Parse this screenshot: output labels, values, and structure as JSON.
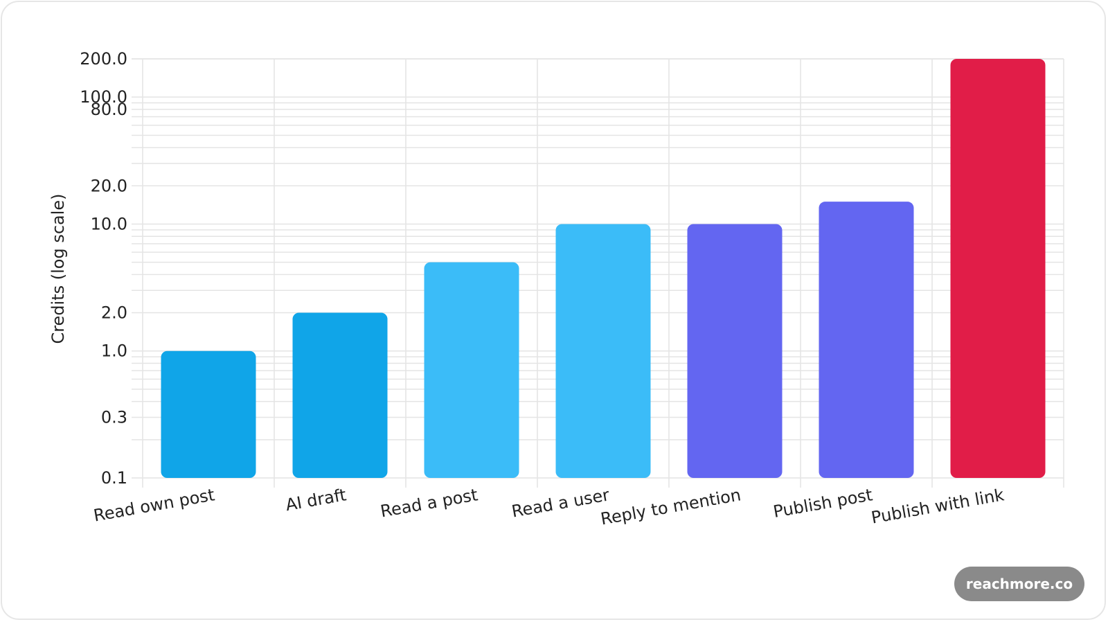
{
  "chart_data": {
    "type": "bar",
    "ylabel": "Credits (log scale)",
    "xlabel": "",
    "yscale": "log",
    "ylim": [
      0.1,
      200
    ],
    "grid": true,
    "ytick_labels": [
      "0.1",
      "0.3",
      "1.0",
      "2.0",
      "10.0",
      "20.0",
      "80.0",
      "100.0",
      "200.0"
    ],
    "categories": [
      "Read own post",
      "AI draft",
      "Read a post",
      "Read a user",
      "Reply to mention",
      "Publish post",
      "Publish with link"
    ],
    "values": [
      1,
      2,
      5,
      10,
      10,
      15,
      200
    ],
    "colors": [
      "#10a5e8",
      "#10a5e8",
      "#3bbcf8",
      "#3bbcf8",
      "#6366f1",
      "#6366f1",
      "#e11d48"
    ]
  },
  "watermark": "reachmore.co"
}
